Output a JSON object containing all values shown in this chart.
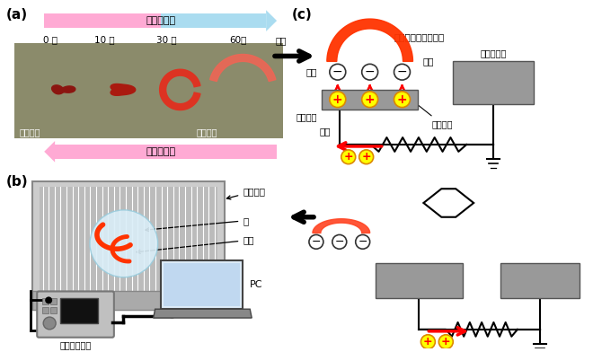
{
  "bg_color": "#ffffff",
  "label_a": "(a)",
  "label_b": "(b)",
  "label_c": "(c)",
  "arrow_up_text": "水和・覚醒",
  "arrow_down_text": "乾燥・休眠",
  "time_labels": [
    "0 分",
    "10 分",
    "30 分",
    "60分"
  ],
  "dry_label": "乾眠状態",
  "awake_label": "覚醒状態",
  "comb_label_b": "櫛歯電極",
  "water_label": "水",
  "larva_label": "幼虫",
  "data_label": "データ記録計",
  "pc_label": "PC",
  "move_label": "動き",
  "larva_name": "ネムリユスリカ幼虫",
  "charge_label": "電荷",
  "field_label": "電場",
  "counter_label": "対向電極",
  "comb_label_c": "櫛歯電極",
  "base_label": "ベース電極",
  "current_label": "電流",
  "photo_bg": "#8B8B6B",
  "gray_electrode": "#999999",
  "red_larva": "#FF3300",
  "water_circle_color": "#DAEEF8",
  "comb_bg": "#C8C8C8"
}
